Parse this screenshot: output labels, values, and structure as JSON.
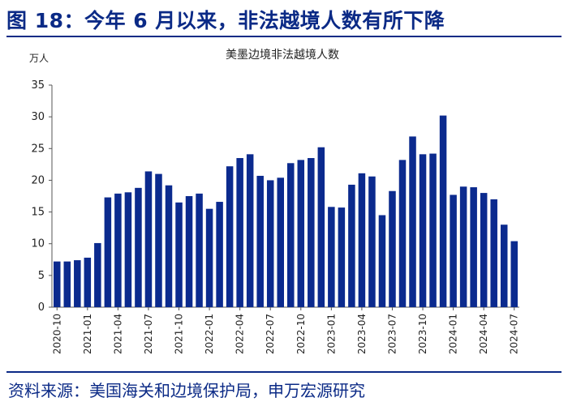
{
  "figure": {
    "title": "图 18：今年 6 月以来，非法越境人数有所下降",
    "source": "资料来源：美国海关和边境保护局，申万宏源研究"
  },
  "colors": {
    "accent": "#0b2a86",
    "bar": "#0b2a8e"
  },
  "chart_data": {
    "type": "bar",
    "title": "美墨边境非法越境人数",
    "ylabel": "万人",
    "xlabel": "",
    "ylim": [
      0,
      35
    ],
    "yticks": [
      0,
      5,
      10,
      15,
      20,
      25,
      30,
      35
    ],
    "grid": false,
    "categories": [
      "2020-10",
      "2020-11",
      "2020-12",
      "2021-01",
      "2021-02",
      "2021-03",
      "2021-04",
      "2021-05",
      "2021-06",
      "2021-07",
      "2021-08",
      "2021-09",
      "2021-10",
      "2021-11",
      "2021-12",
      "2022-01",
      "2022-02",
      "2022-03",
      "2022-04",
      "2022-05",
      "2022-06",
      "2022-07",
      "2022-08",
      "2022-09",
      "2022-10",
      "2022-11",
      "2022-12",
      "2023-01",
      "2023-02",
      "2023-03",
      "2023-04",
      "2023-05",
      "2023-06",
      "2023-07",
      "2023-08",
      "2023-09",
      "2023-10",
      "2023-11",
      "2023-12",
      "2024-01",
      "2024-02",
      "2024-03",
      "2024-04",
      "2024-05",
      "2024-06",
      "2024-07"
    ],
    "tick_labels": [
      "2020-10",
      "2021-01",
      "2021-04",
      "2021-07",
      "2021-10",
      "2022-01",
      "2022-04",
      "2022-07",
      "2022-10",
      "2023-01",
      "2023-04",
      "2023-07",
      "2023-10",
      "2024-01",
      "2024-04",
      "2024-07"
    ],
    "values": [
      7.2,
      7.2,
      7.4,
      7.8,
      10.1,
      17.3,
      17.9,
      18.1,
      18.8,
      21.4,
      21.0,
      19.2,
      16.5,
      17.5,
      17.9,
      15.5,
      16.6,
      22.2,
      23.5,
      24.1,
      20.7,
      20.0,
      20.4,
      22.7,
      23.2,
      23.5,
      25.2,
      15.8,
      15.7,
      19.3,
      21.1,
      20.6,
      14.5,
      18.3,
      23.2,
      26.9,
      24.1,
      24.2,
      30.2,
      17.7,
      19.0,
      18.9,
      18.0,
      17.0,
      13.0,
      10.4
    ]
  }
}
